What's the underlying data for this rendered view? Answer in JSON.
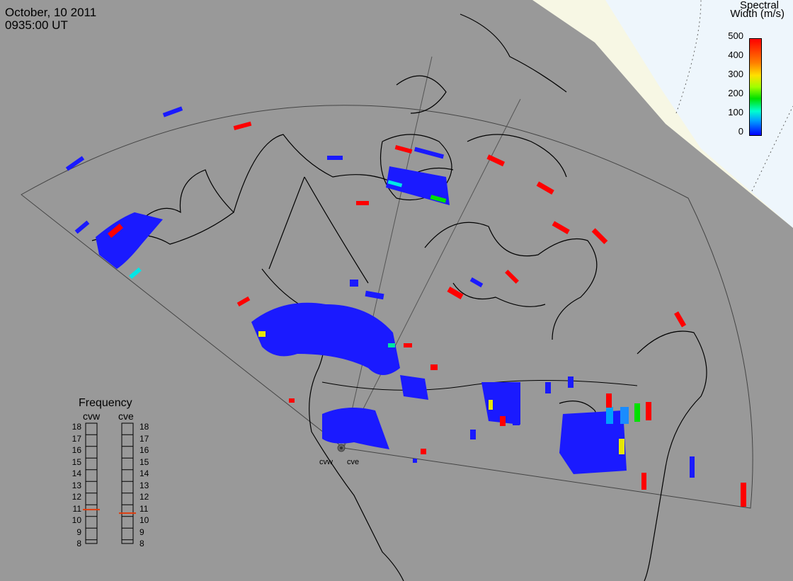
{
  "header": {
    "date": "October, 10 2011",
    "time": "0935:00 UT"
  },
  "colorbar": {
    "title_line1": "Spectral",
    "title_line2": "Width (m/s)",
    "ticks": [
      "500",
      "400",
      "300",
      "200",
      "100",
      "0"
    ],
    "range": [
      0,
      500
    ]
  },
  "frequency_panel": {
    "title": "Frequency",
    "radars": [
      {
        "label": "cvw",
        "value_mhz": 10.9
      },
      {
        "label": "cve",
        "value_mhz": 10.6
      }
    ],
    "scale": [
      "18",
      "17",
      "16",
      "15",
      "14",
      "13",
      "12",
      "11",
      "10",
      "9",
      "8"
    ]
  },
  "radar_labels": {
    "west": "cvw",
    "east": "cve"
  },
  "colors": {
    "background": "#999999",
    "daylight": "#f7f7e4",
    "sky": "#eef6fc",
    "echo_low": "#1a1aff",
    "echo_high": "#ff0000",
    "freq_marker": "#e03c0c"
  }
}
